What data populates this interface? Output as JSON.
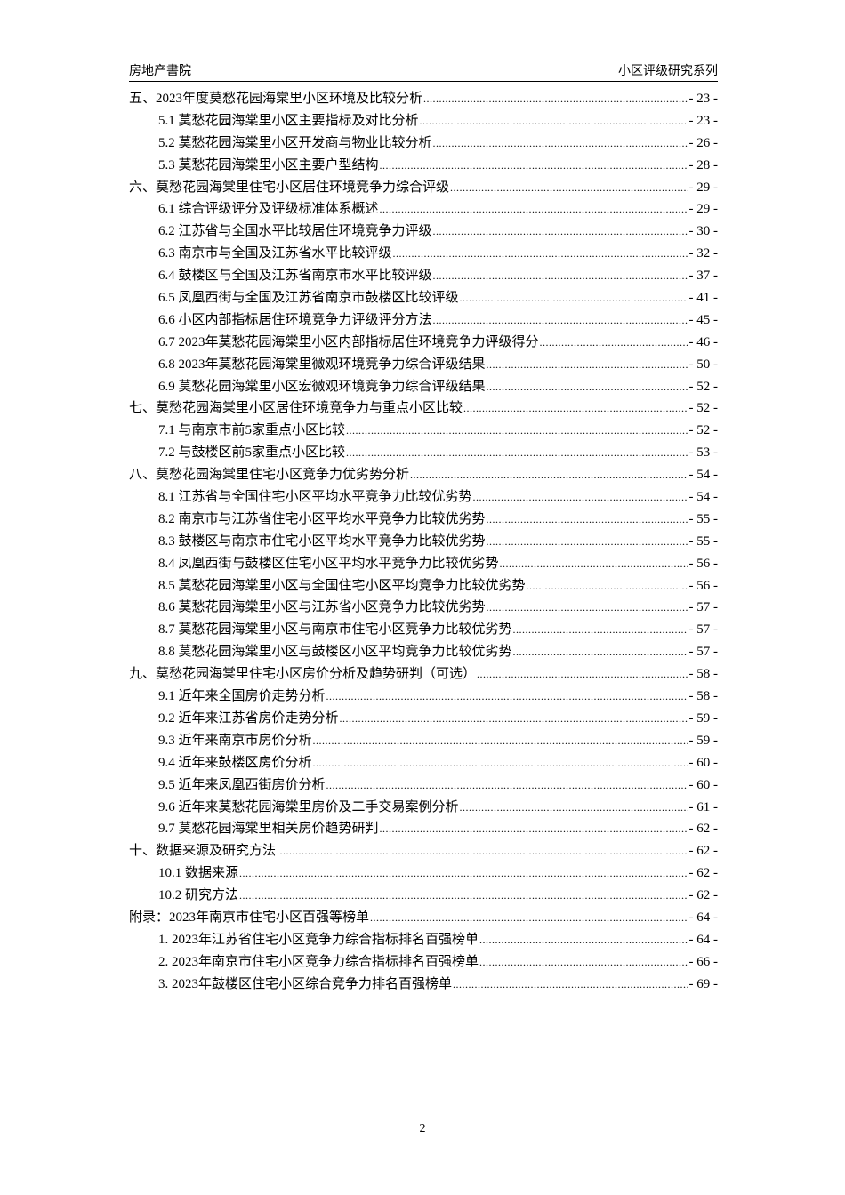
{
  "header": {
    "left": "房地产書院",
    "right": "小区评级研究系列"
  },
  "toc": [
    {
      "level": 1,
      "title": "五、2023年度莫愁花园海棠里小区环境及比较分析",
      "page": "- 23 -"
    },
    {
      "level": 2,
      "title": "5.1 莫愁花园海棠里小区主要指标及对比分析",
      "page": "- 23 -"
    },
    {
      "level": 2,
      "title": "5.2 莫愁花园海棠里小区开发商与物业比较分析",
      "page": "- 26 -"
    },
    {
      "level": 2,
      "title": "5.3 莫愁花园海棠里小区主要户型结构",
      "page": "- 28 -"
    },
    {
      "level": 1,
      "title": "六、莫愁花园海棠里住宅小区居住环境竞争力综合评级",
      "page": "- 29 -"
    },
    {
      "level": 2,
      "title": "6.1 综合评级评分及评级标准体系概述",
      "page": "- 29 -"
    },
    {
      "level": 2,
      "title": "6.2 江苏省与全国水平比较居住环境竞争力评级",
      "page": "- 30 -"
    },
    {
      "level": 2,
      "title": "6.3 南京市与全国及江苏省水平比较评级",
      "page": "- 32 -"
    },
    {
      "level": 2,
      "title": "6.4 鼓楼区与全国及江苏省南京市水平比较评级",
      "page": "- 37 -"
    },
    {
      "level": 2,
      "title": "6.5 凤凰西街与全国及江苏省南京市鼓楼区比较评级",
      "page": "- 41 -"
    },
    {
      "level": 2,
      "title": "6.6 小区内部指标居住环境竞争力评级评分方法",
      "page": "- 45 -"
    },
    {
      "level": 2,
      "title": "6.7 2023年莫愁花园海棠里小区内部指标居住环境竞争力评级得分",
      "page": "- 46 -"
    },
    {
      "level": 2,
      "title": "6.8 2023年莫愁花园海棠里微观环境竞争力综合评级结果",
      "page": "- 50 -"
    },
    {
      "level": 2,
      "title": "6.9 莫愁花园海棠里小区宏微观环境竞争力综合评级结果",
      "page": "- 52 -"
    },
    {
      "level": 1,
      "title": "七、莫愁花园海棠里小区居住环境竞争力与重点小区比较",
      "page": "- 52 -"
    },
    {
      "level": 2,
      "title": "7.1 与南京市前5家重点小区比较",
      "page": "- 52 -"
    },
    {
      "level": 2,
      "title": "7.2 与鼓楼区前5家重点小区比较",
      "page": "- 53 -"
    },
    {
      "level": 1,
      "title": "八、莫愁花园海棠里住宅小区竞争力优劣势分析",
      "page": "- 54 -"
    },
    {
      "level": 2,
      "title": "8.1 江苏省与全国住宅小区平均水平竞争力比较优劣势",
      "page": "- 54 -"
    },
    {
      "level": 2,
      "title": "8.2 南京市与江苏省住宅小区平均水平竞争力比较优劣势",
      "page": "- 55 -"
    },
    {
      "level": 2,
      "title": "8.3 鼓楼区与南京市住宅小区平均水平竞争力比较优劣势",
      "page": "- 55 -"
    },
    {
      "level": 2,
      "title": "8.4 凤凰西街与鼓楼区住宅小区平均水平竞争力比较优劣势",
      "page": "- 56 -"
    },
    {
      "level": 2,
      "title": "8.5 莫愁花园海棠里小区与全国住宅小区平均竞争力比较优劣势",
      "page": "- 56 -"
    },
    {
      "level": 2,
      "title": "8.6 莫愁花园海棠里小区与江苏省小区竞争力比较优劣势",
      "page": "- 57 -"
    },
    {
      "level": 2,
      "title": "8.7 莫愁花园海棠里小区与南京市住宅小区竞争力比较优劣势",
      "page": "- 57 -"
    },
    {
      "level": 2,
      "title": "8.8 莫愁花园海棠里小区与鼓楼区小区平均竞争力比较优劣势",
      "page": "- 57 -"
    },
    {
      "level": 1,
      "title": "九、莫愁花园海棠里住宅小区房价分析及趋势研判（可选）",
      "page": "- 58 -"
    },
    {
      "level": 2,
      "title": "9.1 近年来全国房价走势分析",
      "page": "- 58 -"
    },
    {
      "level": 2,
      "title": "9.2 近年来江苏省房价走势分析",
      "page": "- 59 -"
    },
    {
      "level": 2,
      "title": "9.3 近年来南京市房价分析",
      "page": "- 59 -"
    },
    {
      "level": 2,
      "title": "9.4 近年来鼓楼区房价分析",
      "page": "- 60 -"
    },
    {
      "level": 2,
      "title": "9.5 近年来凤凰西街房价分析",
      "page": "- 60 -"
    },
    {
      "level": 2,
      "title": "9.6 近年来莫愁花园海棠里房价及二手交易案例分析",
      "page": "- 61 -"
    },
    {
      "level": 2,
      "title": "9.7 莫愁花园海棠里相关房价趋势研判",
      "page": "- 62 -"
    },
    {
      "level": 1,
      "title": "十、数据来源及研究方法",
      "page": "- 62 -"
    },
    {
      "level": 2,
      "title": "10.1 数据来源",
      "page": "- 62 -"
    },
    {
      "level": 2,
      "title": "10.2 研究方法",
      "page": "- 62 -"
    },
    {
      "level": 1,
      "title": "附录：2023年南京市住宅小区百强等榜单",
      "page": "- 64 -"
    },
    {
      "level": 2,
      "title": "1.  2023年江苏省住宅小区竞争力综合指标排名百强榜单",
      "page": "- 64 -"
    },
    {
      "level": 2,
      "title": "2.  2023年南京市住宅小区竞争力综合指标排名百强榜单",
      "page": "- 66 -"
    },
    {
      "level": 2,
      "title": "3.  2023年鼓楼区住宅小区综合竞争力排名百强榜单",
      "page": "- 69 -"
    }
  ],
  "footer": {
    "page_number": "2"
  }
}
